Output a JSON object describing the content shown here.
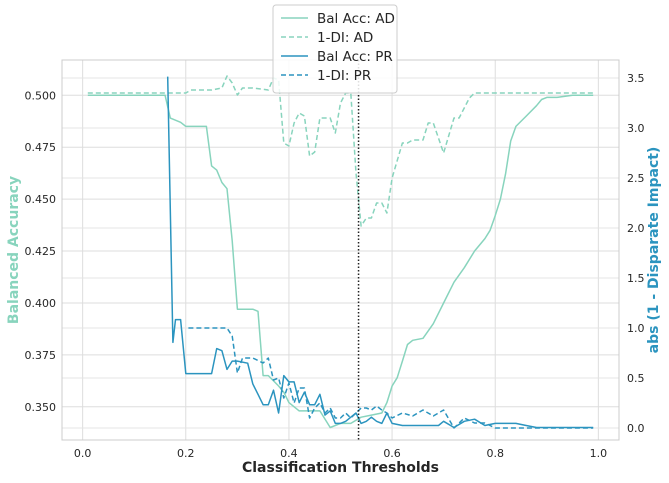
{
  "chart_data": {
    "type": "line",
    "xlabel": "Classification Thresholds",
    "ylabel_left": "Balanced Accuracy",
    "ylabel_right": "abs (1 - Disparate Impact)",
    "xlim": [
      -0.04,
      1.04
    ],
    "ylim_left": [
      0.334,
      0.517
    ],
    "ylim_right": [
      -0.12,
      3.68
    ],
    "x_ticks": [
      0.0,
      0.2,
      0.4,
      0.6,
      0.8,
      1.0
    ],
    "x_tick_labels": [
      "0.0",
      "0.2",
      "0.4",
      "0.6",
      "0.8",
      "1.0"
    ],
    "y_left_ticks": [
      0.35,
      0.375,
      0.4,
      0.425,
      0.45,
      0.475,
      0.5
    ],
    "y_left_tick_labels": [
      "0.350",
      "0.375",
      "0.400",
      "0.425",
      "0.450",
      "0.475",
      "0.500"
    ],
    "y_right_ticks": [
      0.0,
      0.5,
      1.0,
      1.5,
      2.0,
      2.5,
      3.0,
      3.5
    ],
    "y_right_tick_labels": [
      "0.0",
      "0.5",
      "1.0",
      "1.5",
      "2.0",
      "2.5",
      "3.0",
      "3.5"
    ],
    "grid": true,
    "legend_position": "top-center",
    "vline": {
      "x": 0.535,
      "style": "dotted",
      "color": "#222222"
    },
    "colors": {
      "ad": "#88d4bd",
      "pr": "#2b94bf"
    },
    "series": [
      {
        "name": "Bal Acc: AD",
        "axis": "left",
        "style": "solid",
        "color": "#88d4bd",
        "x": [
          0.01,
          0.16,
          0.17,
          0.19,
          0.2,
          0.24,
          0.25,
          0.26,
          0.27,
          0.28,
          0.29,
          0.3,
          0.31,
          0.33,
          0.34,
          0.35,
          0.36,
          0.38,
          0.39,
          0.4,
          0.42,
          0.44,
          0.46,
          0.48,
          0.5,
          0.52,
          0.54,
          0.56,
          0.58,
          0.59,
          0.6,
          0.61,
          0.62,
          0.63,
          0.64,
          0.66,
          0.68,
          0.7,
          0.72,
          0.74,
          0.76,
          0.78,
          0.79,
          0.8,
          0.81,
          0.82,
          0.83,
          0.84,
          0.86,
          0.88,
          0.89,
          0.9,
          0.92,
          0.95,
          0.99
        ],
        "y": [
          0.5,
          0.5,
          0.489,
          0.487,
          0.485,
          0.485,
          0.466,
          0.464,
          0.458,
          0.455,
          0.43,
          0.397,
          0.397,
          0.397,
          0.396,
          0.365,
          0.365,
          0.36,
          0.357,
          0.352,
          0.348,
          0.348,
          0.348,
          0.34,
          0.342,
          0.342,
          0.345,
          0.346,
          0.347,
          0.352,
          0.36,
          0.364,
          0.372,
          0.38,
          0.382,
          0.383,
          0.39,
          0.4,
          0.41,
          0.417,
          0.425,
          0.431,
          0.435,
          0.442,
          0.45,
          0.462,
          0.478,
          0.485,
          0.49,
          0.495,
          0.498,
          0.499,
          0.499,
          0.5,
          0.5
        ]
      },
      {
        "name": "1-DI: AD",
        "axis": "right",
        "style": "dashed",
        "color": "#88d4bd",
        "x": [
          0.01,
          0.16,
          0.17,
          0.19,
          0.2,
          0.21,
          0.25,
          0.27,
          0.28,
          0.29,
          0.3,
          0.31,
          0.33,
          0.36,
          0.37,
          0.38,
          0.39,
          0.4,
          0.41,
          0.42,
          0.43,
          0.44,
          0.45,
          0.46,
          0.47,
          0.48,
          0.49,
          0.5,
          0.51,
          0.52,
          0.53,
          0.54,
          0.55,
          0.56,
          0.57,
          0.58,
          0.59,
          0.6,
          0.62,
          0.63,
          0.64,
          0.65,
          0.66,
          0.67,
          0.68,
          0.7,
          0.72,
          0.73,
          0.75,
          0.76,
          0.78,
          0.8,
          0.99
        ],
        "y": [
          3.35,
          3.35,
          3.35,
          3.35,
          3.35,
          3.38,
          3.38,
          3.4,
          3.52,
          3.45,
          3.33,
          3.4,
          3.4,
          3.38,
          3.5,
          3.48,
          2.85,
          2.82,
          3.05,
          3.15,
          3.12,
          2.72,
          2.76,
          3.1,
          3.1,
          3.1,
          2.95,
          3.25,
          3.35,
          3.35,
          2.55,
          2.02,
          2.1,
          2.1,
          2.25,
          2.25,
          2.15,
          2.5,
          2.85,
          2.85,
          2.88,
          2.88,
          2.88,
          3.05,
          3.05,
          2.75,
          3.1,
          3.1,
          3.3,
          3.35,
          3.35,
          3.35,
          3.35
        ]
      },
      {
        "name": "Bal Acc: PR",
        "axis": "left",
        "style": "solid",
        "color": "#2b94bf",
        "x": [
          0.165,
          0.175,
          0.18,
          0.19,
          0.2,
          0.21,
          0.23,
          0.25,
          0.26,
          0.27,
          0.28,
          0.29,
          0.3,
          0.32,
          0.33,
          0.34,
          0.35,
          0.36,
          0.37,
          0.38,
          0.39,
          0.4,
          0.41,
          0.42,
          0.43,
          0.44,
          0.45,
          0.46,
          0.47,
          0.48,
          0.49,
          0.5,
          0.51,
          0.52,
          0.53,
          0.54,
          0.55,
          0.56,
          0.57,
          0.58,
          0.59,
          0.6,
          0.62,
          0.65,
          0.67,
          0.69,
          0.7,
          0.72,
          0.74,
          0.76,
          0.78,
          0.8,
          0.82,
          0.84,
          0.86,
          0.88,
          0.9,
          0.99
        ],
        "y": [
          0.509,
          0.381,
          0.392,
          0.392,
          0.366,
          0.366,
          0.366,
          0.366,
          0.378,
          0.377,
          0.368,
          0.372,
          0.372,
          0.371,
          0.361,
          0.356,
          0.351,
          0.351,
          0.358,
          0.347,
          0.365,
          0.362,
          0.362,
          0.352,
          0.357,
          0.351,
          0.351,
          0.356,
          0.346,
          0.348,
          0.342,
          0.342,
          0.343,
          0.345,
          0.347,
          0.342,
          0.343,
          0.345,
          0.343,
          0.342,
          0.347,
          0.342,
          0.341,
          0.341,
          0.341,
          0.341,
          0.343,
          0.34,
          0.343,
          0.344,
          0.341,
          0.342,
          0.342,
          0.342,
          0.341,
          0.34,
          0.34,
          0.34
        ]
      },
      {
        "name": "1-DI: PR",
        "axis": "right",
        "style": "dashed",
        "color": "#2b94bf",
        "x": [
          0.205,
          0.28,
          0.29,
          0.3,
          0.31,
          0.33,
          0.35,
          0.36,
          0.37,
          0.38,
          0.39,
          0.4,
          0.41,
          0.42,
          0.43,
          0.44,
          0.45,
          0.46,
          0.47,
          0.48,
          0.49,
          0.5,
          0.51,
          0.52,
          0.53,
          0.54,
          0.55,
          0.56,
          0.57,
          0.58,
          0.59,
          0.6,
          0.62,
          0.64,
          0.66,
          0.68,
          0.7,
          0.72,
          0.74,
          0.76,
          0.78,
          0.8,
          0.82,
          0.85,
          0.99
        ],
        "y": [
          1.0,
          1.0,
          0.92,
          0.55,
          0.7,
          0.7,
          0.65,
          0.7,
          0.48,
          0.5,
          0.3,
          0.45,
          0.25,
          0.4,
          0.4,
          0.1,
          0.2,
          0.25,
          0.15,
          0.2,
          0.1,
          0.1,
          0.15,
          0.1,
          0.15,
          0.2,
          0.2,
          0.18,
          0.22,
          0.18,
          0.15,
          0.1,
          0.15,
          0.12,
          0.18,
          0.12,
          0.18,
          0.0,
          0.1,
          0.05,
          0.05,
          0.0,
          0.0,
          0.0,
          0.0
        ]
      }
    ]
  }
}
